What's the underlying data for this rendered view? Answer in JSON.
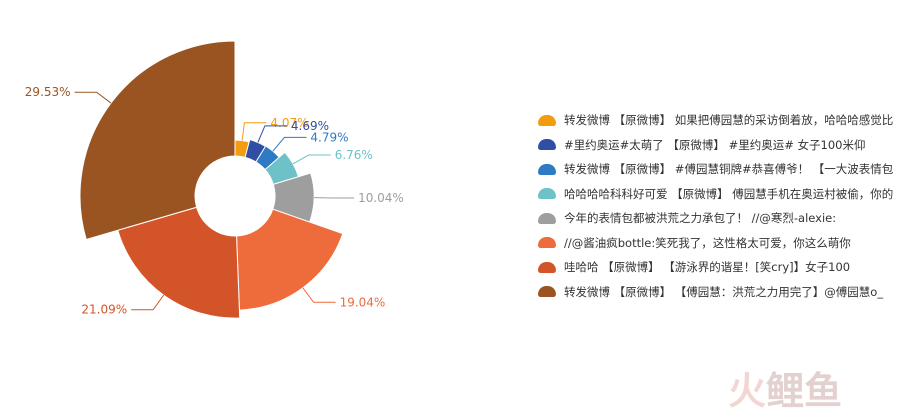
{
  "chart_data": {
    "type": "pie",
    "subtype": "rose",
    "slices": [
      {
        "name": "转发微博 【原微博】 如果把傅园慧的采访倒着放，哈哈哈感觉比",
        "value": 4.07,
        "label": "4.07%",
        "color": "#f39c12"
      },
      {
        "name": "#里约奥运#太萌了 【原微博】 #里约奥运# 女子100米仰",
        "value": 4.69,
        "label": "4.69%",
        "color": "#2f4fa5"
      },
      {
        "name": "转发微博 【原微博】 #傅园慧铜牌#恭喜傅爷！ 【一大波表情包",
        "value": 4.79,
        "label": "4.79%",
        "color": "#2e7bc4"
      },
      {
        "name": "哈哈哈哈科科好可爱 【原微博】 傅园慧手机在奥运村被偷，你的",
        "value": 6.76,
        "label": "6.76%",
        "color": "#6cc2c6"
      },
      {
        "name": "今年的表情包都被洪荒之力承包了！ //@寒烈-alexie:",
        "value": 10.04,
        "label": "10.04%",
        "color": "#9e9e9e"
      },
      {
        "name": "//@酱油疯bottle:笑死我了，这性格太可爱，你这么萌你",
        "value": 19.04,
        "label": "19.04%",
        "color": "#ee6b3b"
      },
      {
        "name": "哇哈哈 【原微博】 【游泳界的谐星！[笑cry]】女子100",
        "value": 21.09,
        "label": "21.09%",
        "color": "#d35428"
      },
      {
        "name": "转发微博 【原微博】 【傅园慧：洪荒之力用完了】@傅园慧o_",
        "value": 29.53,
        "label": "29.53%",
        "color": "#9a5422"
      }
    ],
    "legend_position": "right"
  },
  "watermark": {
    "char1": "火",
    "char2": "鲤",
    "char3": "鱼"
  }
}
